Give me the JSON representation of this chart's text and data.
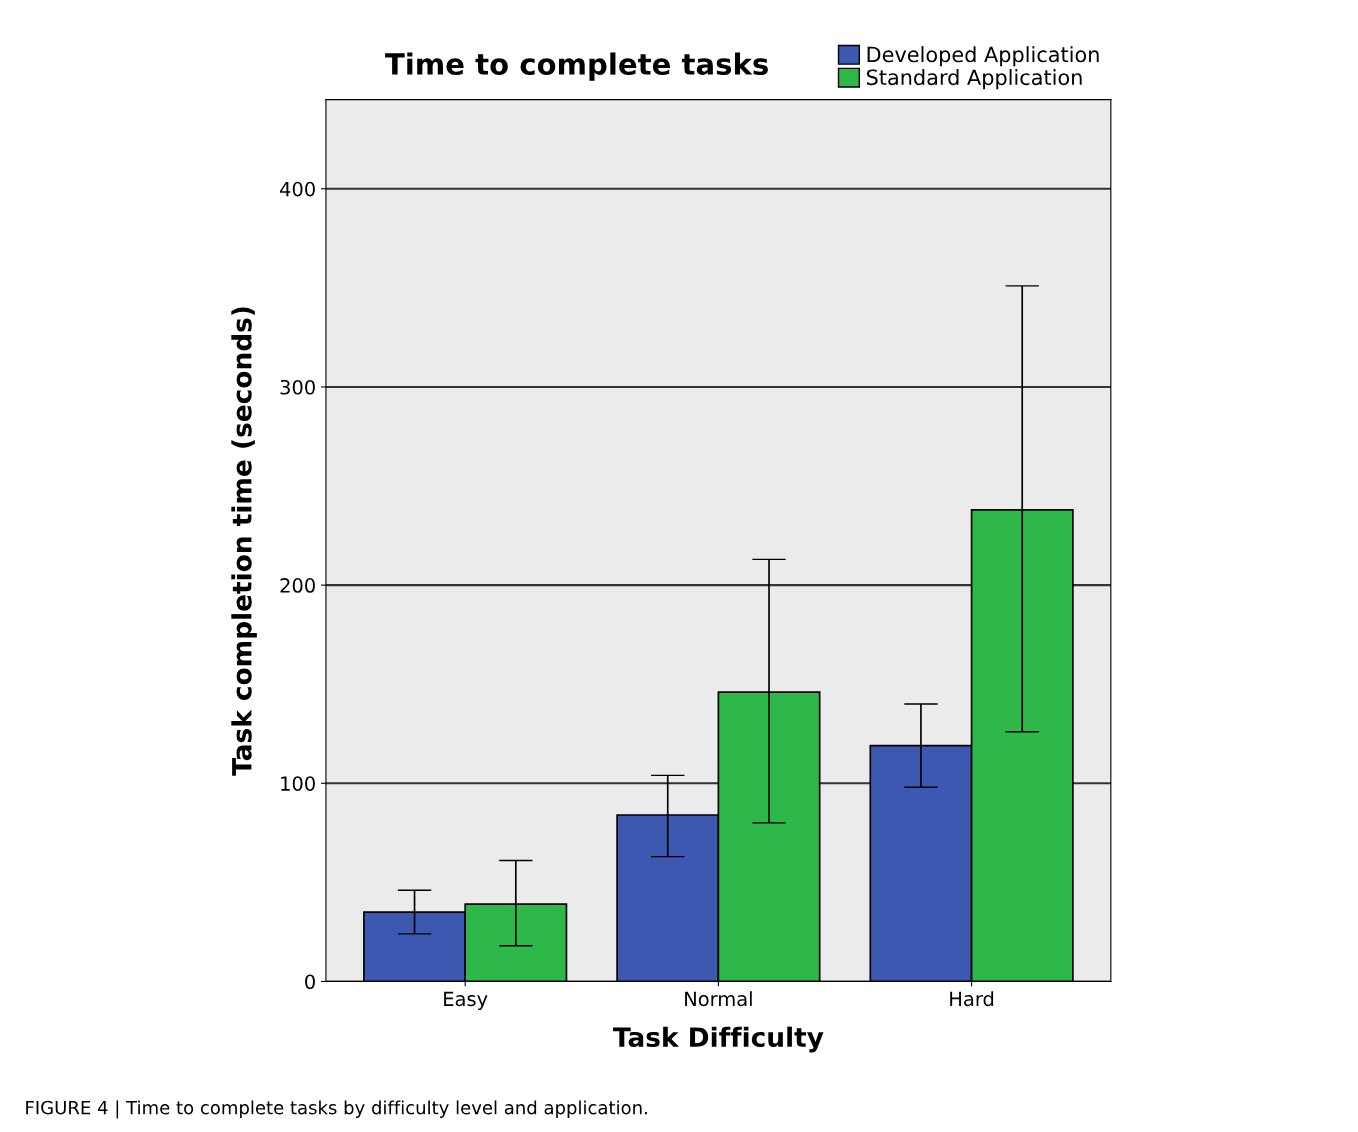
{
  "chart_data": {
    "type": "bar",
    "title": "Time to complete tasks",
    "xlabel": "Task Difficulty",
    "ylabel": "Task completion time (seconds)",
    "categories": [
      "Easy",
      "Normal",
      "Hard"
    ],
    "series": [
      {
        "name": "Developed Application",
        "color": "#3c58b0",
        "values": [
          35,
          84,
          119
        ],
        "errors": [
          [
            24,
            46
          ],
          [
            63,
            104
          ],
          [
            98,
            140
          ]
        ]
      },
      {
        "name": "Standard Application",
        "color": "#2eb84a",
        "values": [
          39,
          146,
          238
        ],
        "errors": [
          [
            18,
            61
          ],
          [
            80,
            213
          ],
          [
            126,
            351
          ]
        ]
      }
    ],
    "ylim": [
      0,
      445
    ],
    "yticks": [
      0,
      100,
      200,
      300,
      400
    ],
    "grid": "y",
    "legend": "top right",
    "annotations": [
      "FIGURE 4 | Time to complete tasks by difficulty level and application."
    ]
  }
}
